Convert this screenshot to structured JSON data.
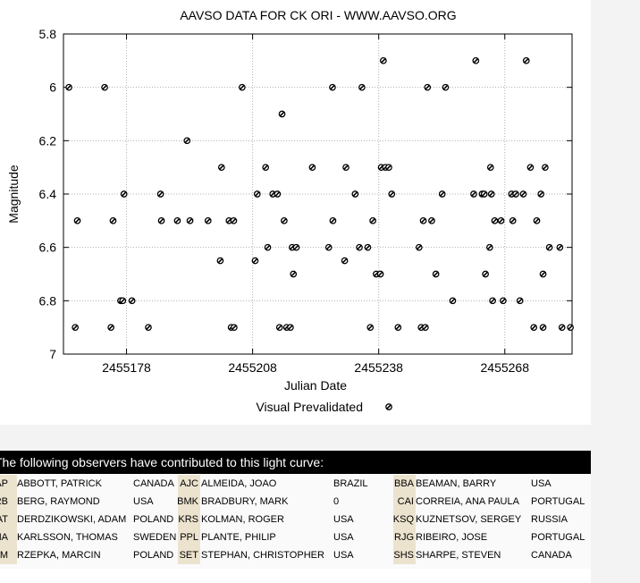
{
  "chart_data": {
    "type": "scatter",
    "title": "AAVSO DATA FOR CK ORI - WWW.AAVSO.ORG",
    "xlabel": "Julian Date",
    "ylabel": "Magnitude",
    "xlim": [
      2455163,
      2455284
    ],
    "ylim": [
      5.8,
      7.0
    ],
    "y_inverted": true,
    "grid": true,
    "x_ticks": [
      "2455178",
      "2455208",
      "2455238",
      "2455268"
    ],
    "y_ticks": [
      "5.8",
      "6",
      "6.2",
      "6.4",
      "6.6",
      "6.8",
      "7"
    ],
    "legend_position": "bottom-center",
    "series": [
      {
        "name": "Visual Prevalidated",
        "points": [
          [
            2455164.3,
            6.0
          ],
          [
            2455165.8,
            6.9
          ],
          [
            2455166.3,
            6.5
          ],
          [
            2455172.8,
            6.0
          ],
          [
            2455174.3,
            6.9
          ],
          [
            2455174.8,
            6.5
          ],
          [
            2455176.6,
            6.8
          ],
          [
            2455177.1,
            6.8
          ],
          [
            2455177.4,
            6.4
          ],
          [
            2455179.3,
            6.8
          ],
          [
            2455183.2,
            6.9
          ],
          [
            2455186.1,
            6.4
          ],
          [
            2455186.3,
            6.5
          ],
          [
            2455190.1,
            6.5
          ],
          [
            2455192.4,
            6.2
          ],
          [
            2455193.1,
            6.5
          ],
          [
            2455197.4,
            6.5
          ],
          [
            2455200.3,
            6.65
          ],
          [
            2455200.6,
            6.3
          ],
          [
            2455202.4,
            6.5
          ],
          [
            2455202.9,
            6.9
          ],
          [
            2455203.6,
            6.9
          ],
          [
            2455203.5,
            6.5
          ],
          [
            2455205.5,
            6.0
          ],
          [
            2455208.6,
            6.65
          ],
          [
            2455209.1,
            6.4
          ],
          [
            2455211.1,
            6.3
          ],
          [
            2455211.6,
            6.6
          ],
          [
            2455212.8,
            6.4
          ],
          [
            2455213.9,
            6.4
          ],
          [
            2455214.4,
            6.9
          ],
          [
            2455215.0,
            6.1
          ],
          [
            2455215.5,
            6.5
          ],
          [
            2455216.1,
            6.9
          ],
          [
            2455217.0,
            6.9
          ],
          [
            2455217.4,
            6.6
          ],
          [
            2455217.7,
            6.7
          ],
          [
            2455218.4,
            6.6
          ],
          [
            2455222.2,
            6.3
          ],
          [
            2455226.1,
            6.6
          ],
          [
            2455227.0,
            6.0
          ],
          [
            2455227.1,
            6.5
          ],
          [
            2455229.9,
            6.65
          ],
          [
            2455230.2,
            6.3
          ],
          [
            2455232.4,
            6.4
          ],
          [
            2455233.4,
            6.6
          ],
          [
            2455234.0,
            6.0
          ],
          [
            2455235.4,
            6.6
          ],
          [
            2455236.0,
            6.9
          ],
          [
            2455236.6,
            6.5
          ],
          [
            2455237.4,
            6.7
          ],
          [
            2455238.4,
            6.7
          ],
          [
            2455238.6,
            6.3
          ],
          [
            2455239.6,
            6.3
          ],
          [
            2455239.1,
            5.9
          ],
          [
            2455240.4,
            6.3
          ],
          [
            2455241.1,
            6.4
          ],
          [
            2455242.6,
            6.9
          ],
          [
            2455247.6,
            6.6
          ],
          [
            2455248.1,
            6.9
          ],
          [
            2455249.1,
            6.9
          ],
          [
            2455248.6,
            6.5
          ],
          [
            2455249.6,
            6.0
          ],
          [
            2455250.6,
            6.5
          ],
          [
            2455251.6,
            6.7
          ],
          [
            2455253.1,
            6.4
          ],
          [
            2455253.9,
            6.0
          ],
          [
            2455255.6,
            6.8
          ],
          [
            2455260.6,
            6.4
          ],
          [
            2455261.1,
            5.9
          ],
          [
            2455262.6,
            6.4
          ],
          [
            2455263.1,
            6.4
          ],
          [
            2455263.4,
            6.7
          ],
          [
            2455264.6,
            6.3
          ],
          [
            2455264.8,
            6.4
          ],
          [
            2455264.4,
            6.6
          ],
          [
            2455265.1,
            6.8
          ],
          [
            2455265.6,
            6.5
          ],
          [
            2455267.1,
            6.5
          ],
          [
            2455267.6,
            6.8
          ],
          [
            2455269.6,
            6.4
          ],
          [
            2455269.9,
            6.5
          ],
          [
            2455270.6,
            6.4
          ],
          [
            2455271.6,
            6.8
          ],
          [
            2455272.4,
            6.4
          ],
          [
            2455273.1,
            5.9
          ],
          [
            2455274.1,
            6.3
          ],
          [
            2455274.9,
            6.9
          ],
          [
            2455275.6,
            6.5
          ],
          [
            2455276.6,
            6.4
          ],
          [
            2455277.1,
            6.9
          ],
          [
            2455277.1,
            6.7
          ],
          [
            2455277.6,
            6.3
          ],
          [
            2455278.6,
            6.6
          ],
          [
            2455281.1,
            6.6
          ],
          [
            2455281.6,
            6.9
          ],
          [
            2455283.6,
            6.9
          ],
          [
            2455286.5,
            6.6
          ]
        ]
      }
    ]
  },
  "observers_section": {
    "header": "The following observers have contributed to this light curve:",
    "rows": [
      [
        {
          "code": "AAP",
          "name": "ABBOTT, PATRICK",
          "country": "CANADA"
        },
        {
          "code": "AJC",
          "name": "ALMEIDA, JOAO",
          "country": "BRAZIL"
        },
        {
          "code": "BBA",
          "name": "BEAMAN, BARRY",
          "country": "USA"
        }
      ],
      [
        {
          "code": "BRB",
          "name": "BERG, RAYMOND",
          "country": "USA"
        },
        {
          "code": "BMK",
          "name": "BRADBURY, MARK",
          "country": "0"
        },
        {
          "code": "CAI",
          "name": "CORREIA, ANA PAULA",
          "country": "PORTUGAL"
        }
      ],
      [
        {
          "code": "DAT",
          "name": "DERDZIKOWSKI, ADAM",
          "country": "POLAND"
        },
        {
          "code": "KRS",
          "name": "KOLMAN, ROGER",
          "country": "USA"
        },
        {
          "code": "KSQ",
          "name": "KUZNETSOV, SERGEY",
          "country": "RUSSIA"
        }
      ],
      [
        {
          "code": "KTHA",
          "name": "KARLSSON, THOMAS",
          "country": "SWEDEN"
        },
        {
          "code": "PPL",
          "name": "PLANTE, PHILIP",
          "country": "USA"
        },
        {
          "code": "RJG",
          "name": "RIBEIRO, JOSE",
          "country": "PORTUGAL"
        }
      ],
      [
        {
          "code": "RZM",
          "name": "RZEPKA, MARCIN",
          "country": "POLAND"
        },
        {
          "code": "SET",
          "name": "STEPHAN, CHRISTOPHER",
          "country": "USA"
        },
        {
          "code": "SHS",
          "name": "SHARPE, STEVEN",
          "country": "CANADA"
        }
      ]
    ]
  }
}
